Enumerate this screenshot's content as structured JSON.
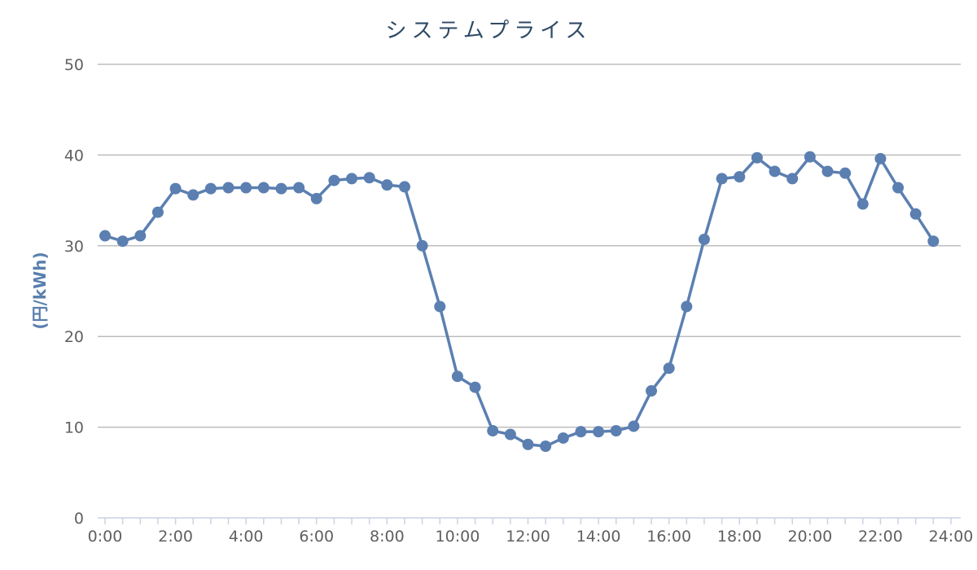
{
  "chart_data": {
    "type": "line",
    "title": "システムプライス",
    "xlabel": "",
    "ylabel": "(円/kWh)",
    "ylim": [
      0,
      50
    ],
    "yticks": [
      "0",
      "10",
      "20",
      "30",
      "40",
      "50"
    ],
    "xticks": [
      "0:00",
      "2:00",
      "4:00",
      "6:00",
      "8:00",
      "10:00",
      "12:00",
      "14:00",
      "16:00",
      "18:00",
      "20:00",
      "22:00",
      "24:00"
    ],
    "xlim_hours": [
      0,
      24
    ],
    "grid": true,
    "legend": "none",
    "color": "#5b7fb1",
    "x_hours": [
      0,
      0.5,
      1,
      1.5,
      2,
      2.5,
      3,
      3.5,
      4,
      4.5,
      5,
      5.5,
      6,
      6.5,
      7,
      7.5,
      8,
      8.5,
      9,
      9.5,
      10,
      10.5,
      11,
      11.5,
      12,
      12.5,
      13,
      13.5,
      14,
      14.5,
      15,
      15.5,
      16,
      16.5,
      17,
      17.5,
      18,
      18.5,
      19,
      19.5,
      20,
      20.5,
      21,
      21.5,
      22,
      22.5,
      23,
      23.5
    ],
    "values": [
      31.1,
      30.5,
      31.1,
      33.7,
      36.3,
      35.6,
      36.3,
      36.4,
      36.4,
      36.4,
      36.3,
      36.4,
      35.2,
      37.2,
      37.4,
      37.5,
      36.7,
      36.5,
      30.0,
      23.3,
      15.6,
      14.4,
      9.6,
      9.2,
      8.1,
      7.9,
      8.8,
      9.5,
      9.5,
      9.6,
      10.1,
      14.0,
      16.5,
      23.3,
      30.7,
      37.4,
      37.6,
      39.7,
      38.2,
      37.4,
      39.8,
      38.2,
      38.0,
      34.6,
      39.6,
      36.4,
      33.5,
      30.5
    ]
  }
}
